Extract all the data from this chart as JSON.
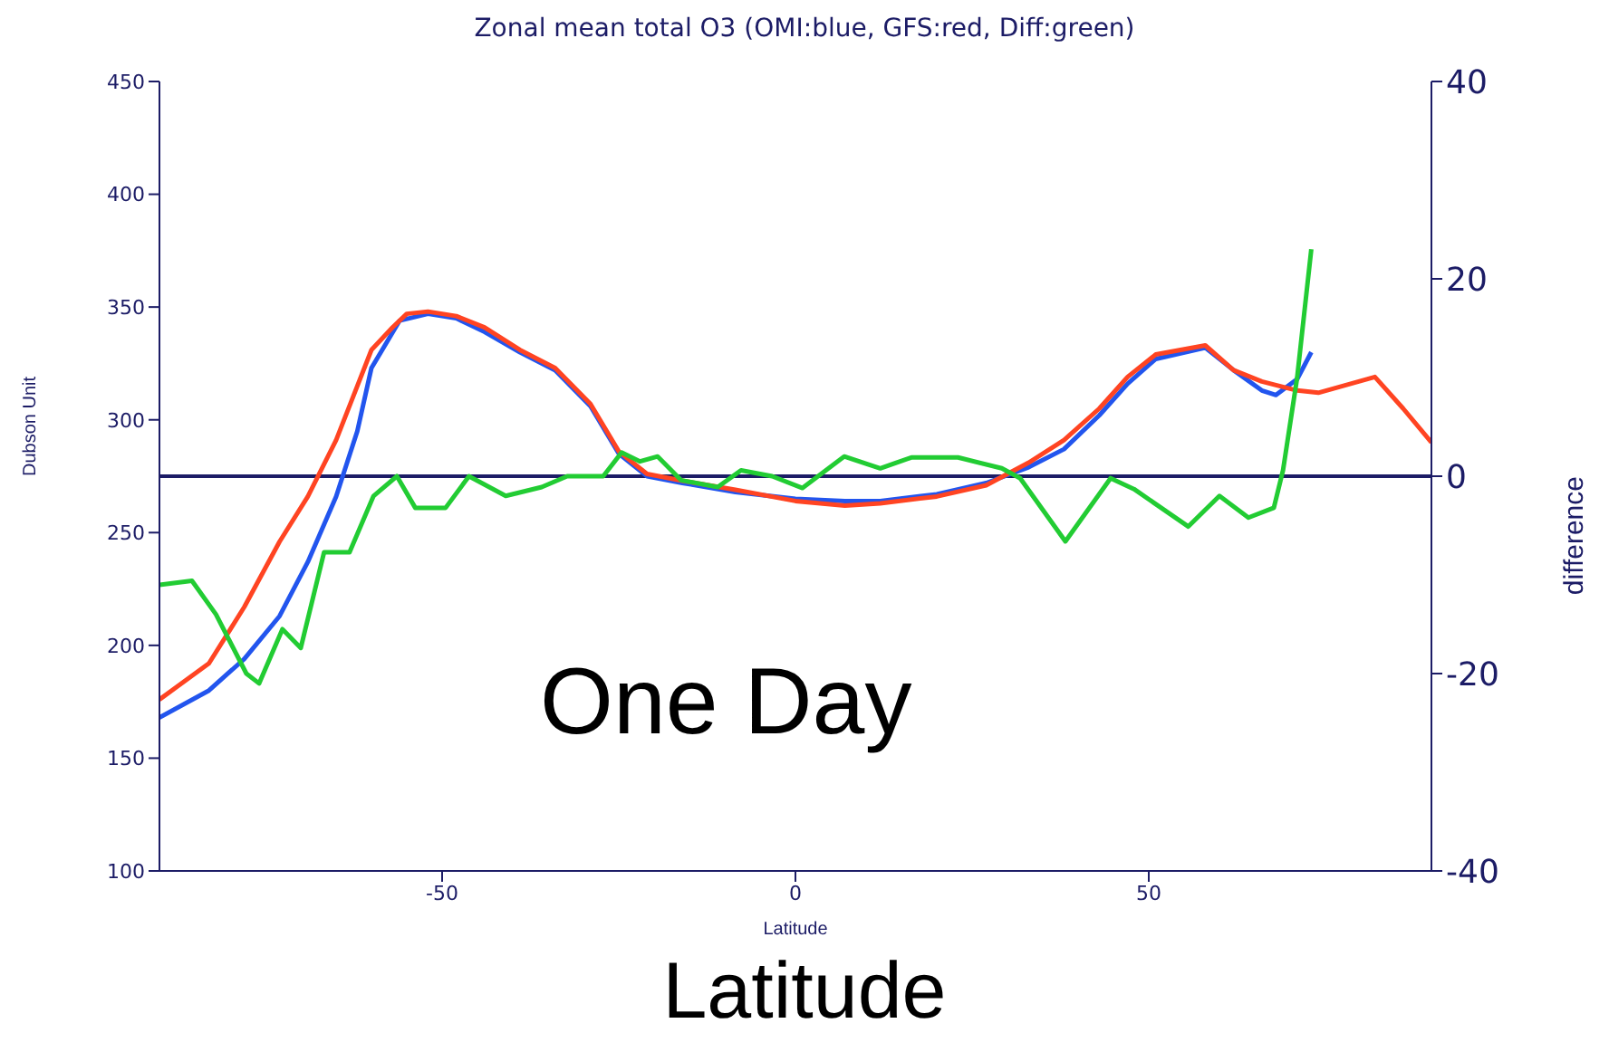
{
  "chart_data": {
    "type": "line",
    "title": "Zonal mean total O3 (OMI:blue, GFS:red, Diff:green)",
    "xlabel": "Latitude",
    "ylabel": "Dubson Unit",
    "y2label": "difference",
    "annotations": [
      "One Day",
      "Latitude"
    ],
    "xlim": [
      -90,
      90
    ],
    "xticks": [
      -50,
      0,
      50
    ],
    "ylim": [
      100,
      450
    ],
    "yticks": [
      100,
      150,
      200,
      250,
      300,
      350,
      400,
      450
    ],
    "y2lim": [
      -40,
      40
    ],
    "y2ticks": [
      -40,
      -20,
      0,
      20,
      40
    ],
    "grid": false,
    "legend": false,
    "marker": "none",
    "line_style": "solid",
    "ref_lines": [
      {
        "axis": "y2",
        "value": 0,
        "color": "#1c1c66"
      }
    ],
    "series": [
      {
        "color": "#2255ee",
        "x": [
          -90,
          -83,
          -78,
          -73,
          -69,
          -65,
          -62,
          -60,
          -56,
          -52,
          -48,
          -44,
          -39,
          -34,
          -29,
          -25,
          -21,
          -16,
          -8.5,
          0,
          7,
          12,
          20,
          27,
          33,
          38,
          43,
          47,
          51,
          58,
          62,
          66,
          68,
          71,
          73
        ],
        "values": [
          168,
          180,
          194,
          213,
          237,
          266,
          295,
          323,
          344,
          347,
          345,
          339,
          330,
          322,
          306,
          285,
          275,
          272,
          268,
          265,
          264,
          264,
          267,
          272,
          279,
          287,
          302,
          316,
          327,
          332,
          322,
          313,
          311,
          318,
          330
        ]
      },
      {
        "color": "#ff4422",
        "x": [
          -90,
          -83,
          -78,
          -73,
          -69,
          -65,
          -62,
          -60,
          -57,
          -55,
          -52,
          -48,
          -44,
          -39,
          -34,
          -29,
          -25,
          -21,
          -16,
          -8.5,
          0,
          7,
          12,
          20,
          27,
          33,
          38,
          43,
          47,
          51,
          58,
          62,
          66,
          71,
          74,
          82,
          86,
          90
        ],
        "values": [
          176,
          192,
          217,
          246,
          266,
          291,
          315,
          331,
          341,
          347,
          348,
          346,
          341,
          331,
          323,
          307,
          286,
          276,
          273,
          269,
          264,
          262,
          263,
          266,
          271,
          281,
          291,
          305,
          319,
          329,
          333,
          322,
          317,
          313,
          312,
          319,
          305,
          290
        ]
      },
      {
        "color": "#22cc33",
        "axis": "y2",
        "x": [
          -90,
          -85.4,
          -82,
          -77.7,
          -75.9,
          -72.6,
          -70,
          -66.7,
          -63.1,
          -59.7,
          -56.4,
          -53.8,
          -49.5,
          -46.2,
          -41,
          -35.9,
          -32.3,
          -27.2,
          -24.6,
          -22,
          -19.5,
          -16.2,
          -11,
          -7.7,
          -3.3,
          1,
          6.9,
          12,
          16.4,
          23,
          29.2,
          31.8,
          38.2,
          44.6,
          47.9,
          55.6,
          60,
          64.1,
          67.7,
          69,
          71,
          73
        ],
        "values": [
          -11,
          -10.6,
          -14,
          -20,
          -21,
          -15.5,
          -17.4,
          -7.7,
          -7.7,
          -2,
          0,
          -3.2,
          -3.2,
          0,
          -2,
          -1.1,
          0,
          0,
          2.4,
          1.5,
          2,
          -0.4,
          -1.1,
          0.6,
          0,
          -1.2,
          2,
          0.8,
          1.9,
          1.9,
          0.8,
          -0.2,
          -6.6,
          -0.2,
          -1.3,
          -5.1,
          -2,
          -4.2,
          -3.2,
          0.6,
          10,
          23
        ]
      }
    ]
  }
}
